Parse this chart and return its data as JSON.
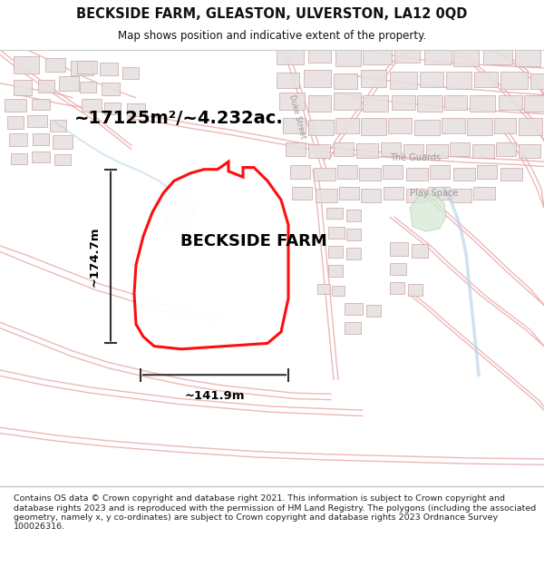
{
  "title": "BECKSIDE FARM, GLEASTON, ULVERSTON, LA12 0QD",
  "subtitle": "Map shows position and indicative extent of the property.",
  "footer": "Contains OS data © Crown copyright and database right 2021. This information is subject to Crown copyright and database rights 2023 and is reproduced with the permission of HM Land Registry. The polygons (including the associated geometry, namely x, y co-ordinates) are subject to Crown copyright and database rights 2023 Ordnance Survey 100026316.",
  "area_label": "~17125m²/~4.232ac.",
  "farm_label": "BECKSIDE FARM",
  "width_label": "~141.9m",
  "height_label": "~174.7m",
  "arrow_color": "#333333",
  "map_bg": "#f8f4f0",
  "road_color": "#e8a0a0",
  "road_fill": "#f5e8e8",
  "building_color": "#ccaaaa",
  "building_fill": "#e8e0e0",
  "green_fill": "#d8ead8",
  "blue_stream": "#b0d0e8",
  "label_color": "#999999",
  "road_stroke": "#e09090"
}
